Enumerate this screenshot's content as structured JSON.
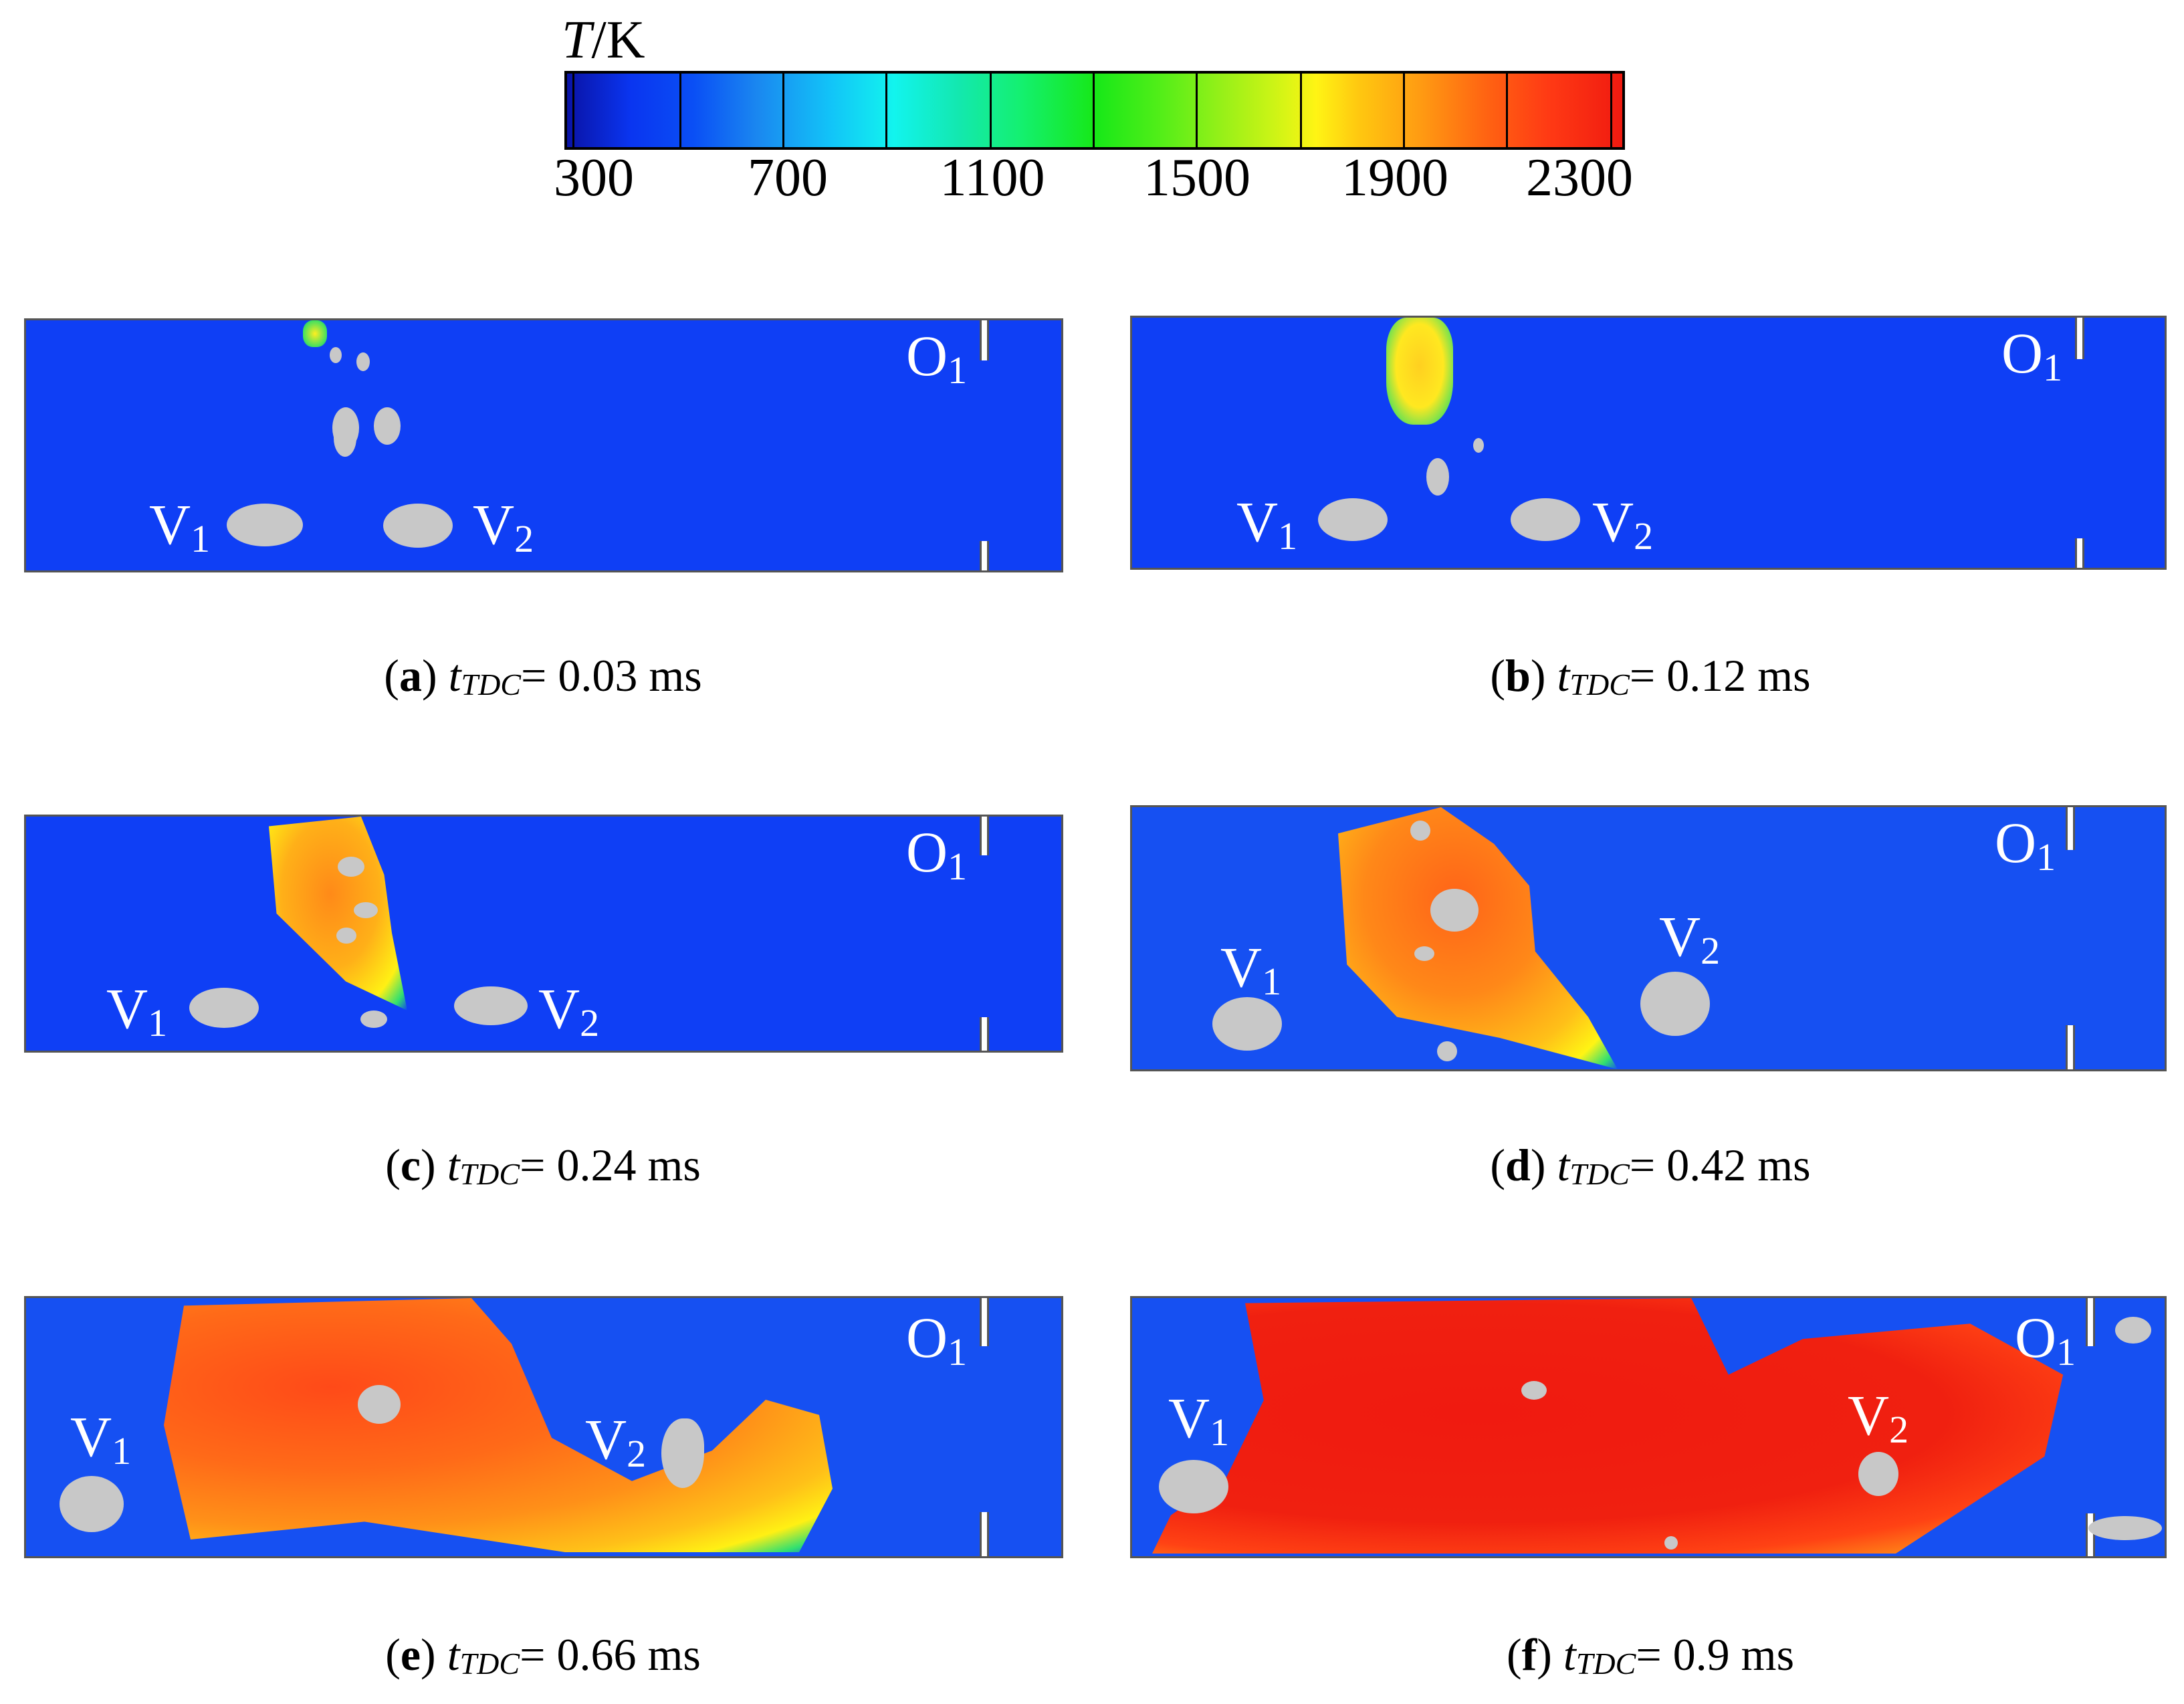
{
  "colorbar": {
    "title_var": "T",
    "title_unit": "/K",
    "ticks": [
      "300",
      "700",
      "1100",
      "1500",
      "1900",
      "2300"
    ],
    "colors": [
      "#0a13a6",
      "#12c4f8",
      "#16e818",
      "#fff414",
      "#ff9a12",
      "#f01a10"
    ]
  },
  "labels": {
    "v1": "V",
    "v2": "V",
    "o1": "O",
    "one": "1",
    "two": "2"
  },
  "panels": [
    {
      "letter": "a",
      "time": "0.03 ms"
    },
    {
      "letter": "b",
      "time": "0.12 ms"
    },
    {
      "letter": "c",
      "time": "0.24 ms"
    },
    {
      "letter": "d",
      "time": "0.42 ms"
    },
    {
      "letter": "e",
      "time": "0.66 ms"
    },
    {
      "letter": "f",
      "time": "0.9 ms"
    }
  ],
  "caption": {
    "open": "(",
    "close": ")",
    "t": "t",
    "sub": "TDC",
    "eq": "= "
  }
}
